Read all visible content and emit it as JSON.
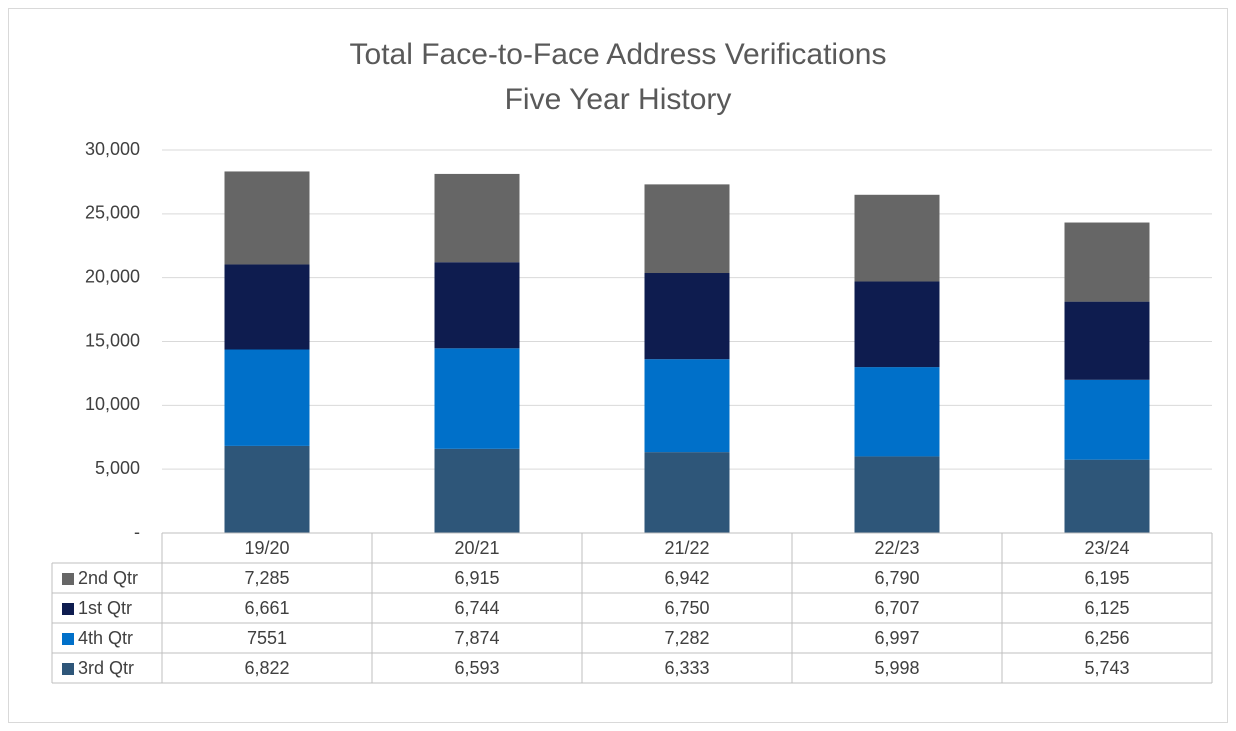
{
  "chart_data": {
    "type": "stacked_bar",
    "title": "Total Face-to-Face Address Verifications",
    "subtitle": "Five Year History",
    "categories": [
      "19/20",
      "20/21",
      "21/22",
      "22/23",
      "23/24"
    ],
    "series": [
      {
        "name": "3rd Qtr",
        "color": "#2e5679",
        "values": [
          6822,
          6593,
          6333,
          5998,
          5743
        ],
        "value_labels": [
          "6,822",
          "6,593",
          "6,333",
          "5,998",
          "5,743"
        ]
      },
      {
        "name": "4th Qtr",
        "color": "#0070c9",
        "values": [
          7551,
          7874,
          7282,
          6997,
          6256
        ],
        "value_labels": [
          "7551",
          "7,874",
          "7,282",
          "6,997",
          "6,256"
        ]
      },
      {
        "name": "1st Qtr",
        "color": "#0e1c4f",
        "values": [
          6661,
          6744,
          6750,
          6707,
          6125
        ],
        "value_labels": [
          "6,661",
          "6,744",
          "6,750",
          "6,707",
          "6,125"
        ]
      },
      {
        "name": "2nd Qtr",
        "color": "#666666",
        "values": [
          7285,
          6915,
          6942,
          6790,
          6195
        ],
        "value_labels": [
          "7,285",
          "6,915",
          "6,942",
          "6,790",
          "6,195"
        ]
      }
    ],
    "ylim": [
      0,
      30000
    ],
    "yticks": [
      {
        "value": 0,
        "label": "-"
      },
      {
        "value": 5000,
        "label": "5,000"
      },
      {
        "value": 10000,
        "label": "10,000"
      },
      {
        "value": 15000,
        "label": "15,000"
      },
      {
        "value": 20000,
        "label": "20,000"
      },
      {
        "value": 25000,
        "label": "25,000"
      },
      {
        "value": 30000,
        "label": "30,000"
      }
    ],
    "grid": true
  }
}
